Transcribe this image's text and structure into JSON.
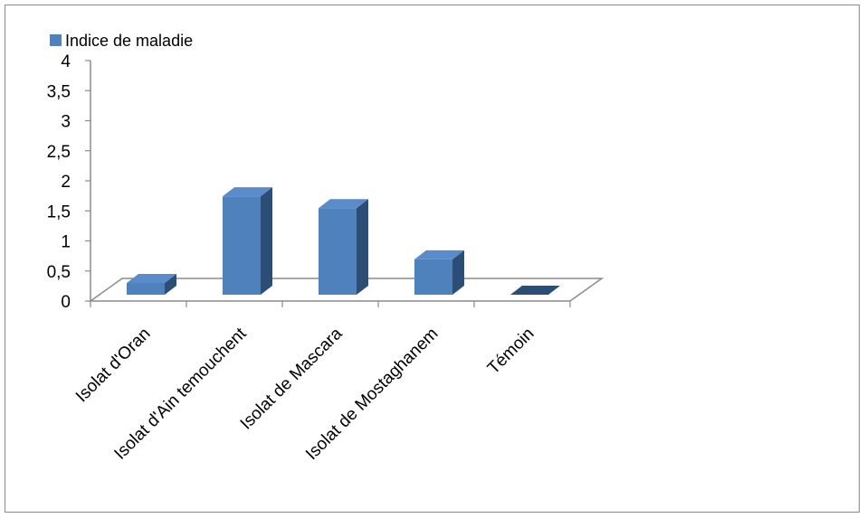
{
  "chart_data": {
    "type": "bar",
    "categories": [
      "Isolat d'Oran",
      "Isolat d'Ain temouchent",
      "Isolat de Mascara",
      "Isolat de Mostaghanem",
      "Témoin"
    ],
    "series": [
      {
        "name": "Indice de maladie",
        "values": [
          0.2,
          1.67,
          1.47,
          0.6,
          0
        ]
      }
    ],
    "ylim": [
      0,
      4
    ],
    "yticks": [
      "0",
      "0,5",
      "1",
      "1,5",
      "2",
      "2,5",
      "3",
      "3,5",
      "4"
    ],
    "legend_position": "top-left",
    "colors": {
      "bar_front": "#4f81bd",
      "bar_side": "#2c4d75",
      "bar_top": "#5a8ccc"
    }
  }
}
